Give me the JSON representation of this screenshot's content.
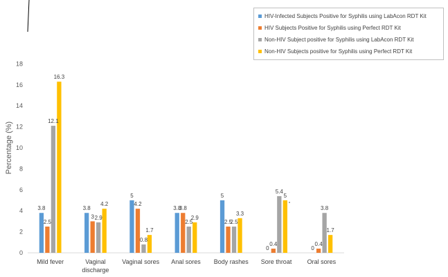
{
  "chart_data": {
    "type": "bar",
    "ylabel": "Percentage (%)",
    "ylim": [
      0,
      18
    ],
    "yticks": [
      0,
      2,
      4,
      6,
      8,
      10,
      12,
      14,
      16,
      18
    ],
    "categories": [
      [
        "Mild fever"
      ],
      [
        "Vaginal",
        "discharge"
      ],
      [
        "Vaginal sores"
      ],
      [
        "Anal sores"
      ],
      [
        "Body rashes"
      ],
      [
        "Sore throat"
      ],
      [
        "Oral sores"
      ]
    ],
    "series": [
      {
        "name": "HIV-Infected Subjects Positive for Syphilis using LabAcon RDT Kit",
        "color": "#5b9bd5",
        "values": [
          3.8,
          3.8,
          5,
          3.8,
          5,
          0,
          0
        ]
      },
      {
        "name": "HIV Subjects Positive for Syphilis using Perfect RDT Kit",
        "color": "#ed7d31",
        "values": [
          2.5,
          3,
          4.2,
          3.8,
          2.5,
          0.4,
          0.4
        ]
      },
      {
        "name": "Non-HIV Subject positive for Syphilis using LabAcon RDT Kit",
        "color": "#a5a5a5",
        "values": [
          12.1,
          2.9,
          0.8,
          2.5,
          2.5,
          5.4,
          3.8
        ]
      },
      {
        "name": "Non-HIV Subjects positive for Syphilis using Perfect RDT Kit",
        "color": "#ffc000",
        "values": [
          16.3,
          4.2,
          1.7,
          2.9,
          3.3,
          5,
          1.7
        ]
      }
    ],
    "legend_position": "top-right",
    "grid": false
  }
}
